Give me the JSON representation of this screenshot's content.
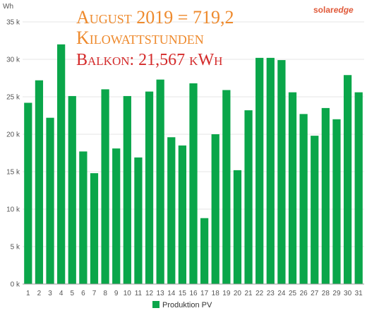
{
  "logo": {
    "solar": "solar",
    "edge": "edge"
  },
  "title": {
    "line1": "August 2019 = 719,2",
    "line2": "Kilowattstunden",
    "line3": "Balkon: 21,567 kWh"
  },
  "colors": {
    "bar": "#0aa64a",
    "title_orange": "#ee8a2d",
    "title_red": "#d42a2a",
    "grid": "#e6e6e6"
  },
  "chart_data": {
    "type": "bar",
    "y_unit_label": "Wh",
    "ylim": [
      0,
      35000
    ],
    "yticks": [
      0,
      5000,
      10000,
      15000,
      20000,
      25000,
      30000,
      35000
    ],
    "ytick_labels": [
      "0 k",
      "5 k",
      "10 k",
      "15 k",
      "20 k",
      "25 k",
      "30 k",
      "35 k"
    ],
    "categories": [
      "1",
      "2",
      "3",
      "4",
      "5",
      "6",
      "7",
      "8",
      "9",
      "10",
      "11",
      "12",
      "13",
      "14",
      "15",
      "16",
      "17",
      "18",
      "19",
      "20",
      "21",
      "22",
      "23",
      "24",
      "25",
      "26",
      "27",
      "28",
      "29",
      "30",
      "31"
    ],
    "series": [
      {
        "name": "Produktion PV",
        "color": "#0aa64a",
        "values": [
          24200,
          27200,
          22200,
          32000,
          25100,
          17700,
          14800,
          26000,
          18100,
          25100,
          16900,
          25700,
          27300,
          19600,
          18500,
          26800,
          8800,
          20000,
          25900,
          15200,
          23200,
          30200,
          30200,
          29900,
          25600,
          22700,
          19800,
          23500,
          22000,
          27900,
          25600
        ]
      }
    ],
    "grid": true,
    "legend": "bottom-center"
  }
}
